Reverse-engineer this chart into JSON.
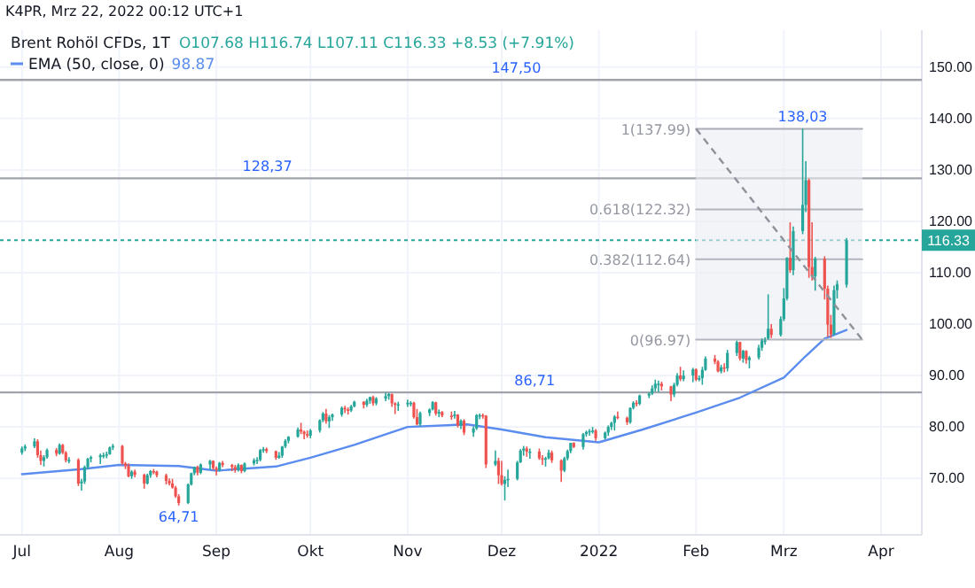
{
  "chart_data": {
    "type": "candlestick",
    "title": "Brent Rohöl CFDs, 1T",
    "annotations": [
      "K4PR, Mrz 22, 2022 00:12 UTC+1",
      "O107.68 H116.74 L107.11 C116.33 +8.53 (+7.91%)",
      "98.87",
      {
        "text": "138,03",
        "x": "2022-03-07",
        "y": 138.03
      },
      {
        "text": "64,71",
        "x": "2021-08-20",
        "y": 64.71
      }
    ],
    "x": [
      "2021-07-01",
      "2021-07-02",
      "2021-07-05",
      "2021-07-06",
      "2021-07-07",
      "2021-07-08",
      "2021-07-09",
      "2021-07-12",
      "2021-07-13",
      "2021-07-14",
      "2021-07-15",
      "2021-07-16",
      "2021-07-19",
      "2021-07-20",
      "2021-07-21",
      "2021-07-22",
      "2021-07-23",
      "2021-07-26",
      "2021-07-27",
      "2021-07-28",
      "2021-07-29",
      "2021-07-30",
      "2021-08-02",
      "2021-08-03",
      "2021-08-04",
      "2021-08-05",
      "2021-08-06",
      "2021-08-09",
      "2021-08-10",
      "2021-08-11",
      "2021-08-12",
      "2021-08-13",
      "2021-08-16",
      "2021-08-17",
      "2021-08-18",
      "2021-08-19",
      "2021-08-20",
      "2021-08-23",
      "2021-08-24",
      "2021-08-25",
      "2021-08-26",
      "2021-08-27",
      "2021-08-30",
      "2021-08-31",
      "2021-09-01",
      "2021-09-02",
      "2021-09-03",
      "2021-09-06",
      "2021-09-07",
      "2021-09-08",
      "2021-09-09",
      "2021-09-10",
      "2021-09-13",
      "2021-09-14",
      "2021-09-15",
      "2021-09-16",
      "2021-09-17",
      "2021-09-20",
      "2021-09-21",
      "2021-09-22",
      "2021-09-23",
      "2021-09-24",
      "2021-09-27",
      "2021-09-28",
      "2021-09-29",
      "2021-09-30",
      "2021-10-01",
      "2021-10-04",
      "2021-10-05",
      "2021-10-06",
      "2021-10-07",
      "2021-10-08",
      "2021-10-11",
      "2021-10-12",
      "2021-10-13",
      "2021-10-14",
      "2021-10-15",
      "2021-10-18",
      "2021-10-19",
      "2021-10-20",
      "2021-10-21",
      "2021-10-22",
      "2021-10-25",
      "2021-10-26",
      "2021-10-27",
      "2021-10-28",
      "2021-10-29",
      "2021-11-01",
      "2021-11-02",
      "2021-11-03",
      "2021-11-04",
      "2021-11-05",
      "2021-11-08",
      "2021-11-09",
      "2021-11-10",
      "2021-11-11",
      "2021-11-12",
      "2021-11-15",
      "2021-11-16",
      "2021-11-17",
      "2021-11-18",
      "2021-11-19",
      "2021-11-22",
      "2021-11-23",
      "2021-11-24",
      "2021-11-25",
      "2021-11-26",
      "2021-11-29",
      "2021-11-30",
      "2021-12-01",
      "2021-12-02",
      "2021-12-03",
      "2021-12-06",
      "2021-12-07",
      "2021-12-08",
      "2021-12-09",
      "2021-12-10",
      "2021-12-13",
      "2021-12-14",
      "2021-12-15",
      "2021-12-16",
      "2021-12-17",
      "2021-12-20",
      "2021-12-21",
      "2021-12-22",
      "2021-12-23",
      "2021-12-24",
      "2021-12-27",
      "2021-12-28",
      "2021-12-29",
      "2021-12-30",
      "2021-12-31",
      "2022-01-03",
      "2022-01-04",
      "2022-01-05",
      "2022-01-06",
      "2022-01-07",
      "2022-01-10",
      "2022-01-11",
      "2022-01-12",
      "2022-01-13",
      "2022-01-14",
      "2022-01-17",
      "2022-01-18",
      "2022-01-19",
      "2022-01-20",
      "2022-01-21",
      "2022-01-24",
      "2022-01-25",
      "2022-01-26",
      "2022-01-27",
      "2022-01-28",
      "2022-01-31",
      "2022-02-01",
      "2022-02-02",
      "2022-02-03",
      "2022-02-04",
      "2022-02-07",
      "2022-02-08",
      "2022-02-09",
      "2022-02-10",
      "2022-02-11",
      "2022-02-14",
      "2022-02-15",
      "2022-02-16",
      "2022-02-17",
      "2022-02-18",
      "2022-02-21",
      "2022-02-22",
      "2022-02-23",
      "2022-02-24",
      "2022-02-25",
      "2022-02-28",
      "2022-03-01",
      "2022-03-02",
      "2022-03-03",
      "2022-03-04",
      "2022-03-07",
      "2022-03-08",
      "2022-03-09",
      "2022-03-10",
      "2022-03-11",
      "2022-03-14",
      "2022-03-15",
      "2022-03-16",
      "2022-03-17",
      "2022-03-18",
      "2022-03-21"
    ],
    "ohlc": [
      [
        75.0,
        76.2,
        74.6,
        75.8
      ],
      [
        75.8,
        76.6,
        75.3,
        76.2
      ],
      [
        76.2,
        77.8,
        75.9,
        77.2
      ],
      [
        77.2,
        77.6,
        74.0,
        74.5
      ],
      [
        74.5,
        75.4,
        72.6,
        73.4
      ],
      [
        73.4,
        74.5,
        72.3,
        74.1
      ],
      [
        74.1,
        75.8,
        73.8,
        75.5
      ],
      [
        75.5,
        75.9,
        74.3,
        74.8
      ],
      [
        74.8,
        76.8,
        74.6,
        76.5
      ],
      [
        76.5,
        76.7,
        74.7,
        75.0
      ],
      [
        75.0,
        75.3,
        73.1,
        73.5
      ],
      [
        73.5,
        74.1,
        72.9,
        73.6
      ],
      [
        73.6,
        73.9,
        68.5,
        69.0
      ],
      [
        69.0,
        69.9,
        67.6,
        69.4
      ],
      [
        69.4,
        72.5,
        68.9,
        72.2
      ],
      [
        72.2,
        74.0,
        71.8,
        73.8
      ],
      [
        73.8,
        74.4,
        73.1,
        74.1
      ],
      [
        74.1,
        74.8,
        72.8,
        74.5
      ],
      [
        74.5,
        75.0,
        73.9,
        74.5
      ],
      [
        74.5,
        75.2,
        73.9,
        74.7
      ],
      [
        74.7,
        76.2,
        74.6,
        76.0
      ],
      [
        76.0,
        76.7,
        75.5,
        76.3
      ],
      [
        76.3,
        76.5,
        72.6,
        72.9
      ],
      [
        72.9,
        73.2,
        71.8,
        72.4
      ],
      [
        72.4,
        72.9,
        70.2,
        70.4
      ],
      [
        70.4,
        71.6,
        69.9,
        71.3
      ],
      [
        71.3,
        71.7,
        70.2,
        70.7
      ],
      [
        70.7,
        70.9,
        68.0,
        69.0
      ],
      [
        69.0,
        70.9,
        68.8,
        70.6
      ],
      [
        70.6,
        71.6,
        70.1,
        71.4
      ],
      [
        71.4,
        71.8,
        70.8,
        71.3
      ],
      [
        71.3,
        71.5,
        70.2,
        70.6
      ],
      [
        70.6,
        70.9,
        68.8,
        69.5
      ],
      [
        69.5,
        70.0,
        68.6,
        69.0
      ],
      [
        69.0,
        69.9,
        68.0,
        68.2
      ],
      [
        68.2,
        68.5,
        66.2,
        66.5
      ],
      [
        66.5,
        66.9,
        64.71,
        65.2
      ],
      [
        65.2,
        69.0,
        65.0,
        68.8
      ],
      [
        68.8,
        71.1,
        68.6,
        71.0
      ],
      [
        71.0,
        72.3,
        70.6,
        72.2
      ],
      [
        72.2,
        72.5,
        70.6,
        71.1
      ],
      [
        71.1,
        72.9,
        70.8,
        72.7
      ],
      [
        72.7,
        73.6,
        71.7,
        73.4
      ],
      [
        73.4,
        73.5,
        71.6,
        72.0
      ],
      [
        72.0,
        72.3,
        70.6,
        71.6
      ],
      [
        71.6,
        73.2,
        71.3,
        73.0
      ],
      [
        73.0,
        73.4,
        72.2,
        72.6
      ],
      [
        72.6,
        72.8,
        71.4,
        72.2
      ],
      [
        72.2,
        72.6,
        71.1,
        71.7
      ],
      [
        71.7,
        72.9,
        71.3,
        72.6
      ],
      [
        72.6,
        72.7,
        71.0,
        71.4
      ],
      [
        71.4,
        73.1,
        71.2,
        72.9
      ],
      [
        72.9,
        73.9,
        72.5,
        73.5
      ],
      [
        73.5,
        74.1,
        72.8,
        73.6
      ],
      [
        73.6,
        75.7,
        73.3,
        75.5
      ],
      [
        75.5,
        76.1,
        75.0,
        75.7
      ],
      [
        75.7,
        76.0,
        74.9,
        75.3
      ],
      [
        75.3,
        75.4,
        73.6,
        74.0
      ],
      [
        74.0,
        75.1,
        73.8,
        74.4
      ],
      [
        74.4,
        76.3,
        74.0,
        76.2
      ],
      [
        76.2,
        77.6,
        75.9,
        77.3
      ],
      [
        77.3,
        78.2,
        76.8,
        78.1
      ],
      [
        78.1,
        79.9,
        77.9,
        79.5
      ],
      [
        79.5,
        80.8,
        78.6,
        79.1
      ],
      [
        79.1,
        79.3,
        77.6,
        78.6
      ],
      [
        78.6,
        79.3,
        77.9,
        78.3
      ],
      [
        78.3,
        79.6,
        77.8,
        79.3
      ],
      [
        79.3,
        81.5,
        78.9,
        81.3
      ],
      [
        81.3,
        82.9,
        80.9,
        82.6
      ],
      [
        82.6,
        83.5,
        80.6,
        81.1
      ],
      [
        81.1,
        82.3,
        79.8,
        81.9
      ],
      [
        81.9,
        82.6,
        81.2,
        82.4
      ],
      [
        82.4,
        84.0,
        82.0,
        83.7
      ],
      [
        83.7,
        84.1,
        82.7,
        83.4
      ],
      [
        83.4,
        83.8,
        82.4,
        83.2
      ],
      [
        83.2,
        84.3,
        82.9,
        84.0
      ],
      [
        84.0,
        85.1,
        83.8,
        84.9
      ],
      [
        84.9,
        85.0,
        83.6,
        84.3
      ],
      [
        84.3,
        85.5,
        83.9,
        85.1
      ],
      [
        85.1,
        85.9,
        84.5,
        85.8
      ],
      [
        85.8,
        86.1,
        84.1,
        84.6
      ],
      [
        84.6,
        85.8,
        84.2,
        85.5
      ],
      [
        85.5,
        86.71,
        85.0,
        86.0
      ],
      [
        86.0,
        86.6,
        85.3,
        86.4
      ],
      [
        86.4,
        86.5,
        83.9,
        84.6
      ],
      [
        84.6,
        84.8,
        82.5,
        84.3
      ],
      [
        84.3,
        84.9,
        83.1,
        84.4
      ],
      [
        84.4,
        85.3,
        83.9,
        84.7
      ],
      [
        84.7,
        85.0,
        84.0,
        84.7
      ],
      [
        84.7,
        84.9,
        81.6,
        81.9
      ],
      [
        81.9,
        83.5,
        80.3,
        80.5
      ],
      [
        80.5,
        83.0,
        80.1,
        82.7
      ],
      [
        82.7,
        83.6,
        82.1,
        83.4
      ],
      [
        83.4,
        85.0,
        83.2,
        84.8
      ],
      [
        84.8,
        84.9,
        82.2,
        82.6
      ],
      [
        82.6,
        83.4,
        81.9,
        82.9
      ],
      [
        82.9,
        83.1,
        81.9,
        82.2
      ],
      [
        82.2,
        83.0,
        81.4,
        82.1
      ],
      [
        82.1,
        83.1,
        81.6,
        82.4
      ],
      [
        82.4,
        82.5,
        79.9,
        80.3
      ],
      [
        80.3,
        81.5,
        79.6,
        81.2
      ],
      [
        81.2,
        81.5,
        78.4,
        78.9
      ],
      [
        78.9,
        80.1,
        78.1,
        79.7
      ],
      [
        79.7,
        82.5,
        79.4,
        82.3
      ],
      [
        82.3,
        82.6,
        81.5,
        82.3
      ],
      [
        82.3,
        82.6,
        81.6,
        82.2
      ],
      [
        82.2,
        82.3,
        72.0,
        72.7
      ],
      [
        72.7,
        75.4,
        72.4,
        73.4
      ],
      [
        73.4,
        74.0,
        68.9,
        70.6
      ],
      [
        70.6,
        73.4,
        68.6,
        68.9
      ],
      [
        68.9,
        70.4,
        65.7,
        69.7
      ],
      [
        69.7,
        71.7,
        68.3,
        69.9
      ],
      [
        69.9,
        73.4,
        69.6,
        73.1
      ],
      [
        73.1,
        75.7,
        73.0,
        75.4
      ],
      [
        75.4,
        76.3,
        74.4,
        75.8
      ],
      [
        75.8,
        76.2,
        74.2,
        75.2
      ],
      [
        75.2,
        75.8,
        73.8,
        75.2
      ],
      [
        75.2,
        75.8,
        73.6,
        73.9
      ],
      [
        73.9,
        74.5,
        72.6,
        73.7
      ],
      [
        73.7,
        74.2,
        72.3,
        73.9
      ],
      [
        73.9,
        75.6,
        73.7,
        75.0
      ],
      [
        75.0,
        75.4,
        73.0,
        73.5
      ],
      [
        73.5,
        73.7,
        69.3,
        71.5
      ],
      [
        71.5,
        74.2,
        71.2,
        73.9
      ],
      [
        73.9,
        75.6,
        73.5,
        75.3
      ],
      [
        75.3,
        76.9,
        74.9,
        76.9
      ],
      [
        76.9,
        77.0,
        75.9,
        76.1
      ],
      [
        76.1,
        78.8,
        75.6,
        78.6
      ],
      [
        78.6,
        79.3,
        78.1,
        79.0
      ],
      [
        79.0,
        79.6,
        78.3,
        79.2
      ],
      [
        79.2,
        80.0,
        78.7,
        79.3
      ],
      [
        79.3,
        79.6,
        77.3,
        77.8
      ],
      [
        77.8,
        79.1,
        77.6,
        78.9
      ],
      [
        78.9,
        80.3,
        78.3,
        80.0
      ],
      [
        80.0,
        81.0,
        79.4,
        80.8
      ],
      [
        80.8,
        82.3,
        79.3,
        82.0
      ],
      [
        82.0,
        83.0,
        81.5,
        81.8
      ],
      [
        81.8,
        82.0,
        80.4,
        80.9
      ],
      [
        80.9,
        83.8,
        80.6,
        83.7
      ],
      [
        83.7,
        85.0,
        83.4,
        84.7
      ],
      [
        84.7,
        85.2,
        84.0,
        84.5
      ],
      [
        84.5,
        86.3,
        84.2,
        86.1
      ],
      [
        86.1,
        86.7,
        85.6,
        86.5
      ],
      [
        86.5,
        88.1,
        86.2,
        87.5
      ],
      [
        87.5,
        89.2,
        86.9,
        88.4
      ],
      [
        88.4,
        89.0,
        86.8,
        88.4
      ],
      [
        88.4,
        88.8,
        87.1,
        87.9
      ],
      [
        87.9,
        88.0,
        85.0,
        86.3
      ],
      [
        86.3,
        88.6,
        85.8,
        88.2
      ],
      [
        88.2,
        90.5,
        87.9,
        90.0
      ],
      [
        90.0,
        91.7,
        88.9,
        89.3
      ],
      [
        89.3,
        91.0,
        88.9,
        90.0
      ],
      [
        90.0,
        91.5,
        88.7,
        91.2
      ],
      [
        91.2,
        91.4,
        88.9,
        89.2
      ],
      [
        89.2,
        90.0,
        88.9,
        89.5
      ],
      [
        89.5,
        91.7,
        88.2,
        91.1
      ],
      [
        91.1,
        93.7,
        90.9,
        93.3
      ],
      [
        93.3,
        94.0,
        92.2,
        92.7
      ],
      [
        92.7,
        93.0,
        90.6,
        90.8
      ],
      [
        90.8,
        92.1,
        90.4,
        91.6
      ],
      [
        91.6,
        92.4,
        90.6,
        91.4
      ],
      [
        91.4,
        95.0,
        90.8,
        94.4
      ],
      [
        94.4,
        96.8,
        93.8,
        96.5
      ],
      [
        96.5,
        96.6,
        92.9,
        93.3
      ],
      [
        93.3,
        95.0,
        92.5,
        94.8
      ],
      [
        94.8,
        94.9,
        92.3,
        93.0
      ],
      [
        93.0,
        93.8,
        91.4,
        93.5
      ],
      [
        93.5,
        96.0,
        93.1,
        95.4
      ],
      [
        95.4,
        97.2,
        94.8,
        96.8
      ],
      [
        96.8,
        97.4,
        96.0,
        96.8
      ],
      [
        97.2,
        105.8,
        96.97,
        99.1
      ],
      [
        99.1,
        100.0,
        97.3,
        97.9
      ],
      [
        97.9,
        101.5,
        97.6,
        101.0
      ],
      [
        101.0,
        107.0,
        100.6,
        105.0
      ],
      [
        105.0,
        113.0,
        104.6,
        112.9
      ],
      [
        112.9,
        119.8,
        110.0,
        110.5
      ],
      [
        110.5,
        119.0,
        109.5,
        118.1
      ],
      [
        118.1,
        138.03,
        117.5,
        123.2
      ],
      [
        123.2,
        131.7,
        121.8,
        128.0
      ],
      [
        128.0,
        128.3,
        109.0,
        111.1
      ],
      [
        111.1,
        119.8,
        108.5,
        109.3
      ],
      [
        109.3,
        113.1,
        106.5,
        112.7
      ],
      [
        112.7,
        113.2,
        104.8,
        106.9
      ],
      [
        106.9,
        107.5,
        97.5,
        99.9
      ],
      [
        99.9,
        101.8,
        97.3,
        98.0
      ],
      [
        98.0,
        107.5,
        97.8,
        106.6
      ],
      [
        106.6,
        108.5,
        105.0,
        107.8
      ],
      [
        107.68,
        116.74,
        107.11,
        116.33
      ]
    ],
    "series": [
      {
        "type": "line",
        "name": "EMA (50, close, 0)",
        "color": "#5b8def",
        "x": [
          "2021-07-01",
          "2021-07-20",
          "2021-08-01",
          "2021-08-20",
          "2021-09-01",
          "2021-09-20",
          "2021-10-01",
          "2021-10-15",
          "2021-11-01",
          "2021-11-20",
          "2021-12-01",
          "2021-12-15",
          "2022-01-01",
          "2022-01-15",
          "2022-02-01",
          "2022-02-15",
          "2022-03-01",
          "2022-03-08",
          "2022-03-14",
          "2022-03-21"
        ],
        "values": [
          70.8,
          71.8,
          72.6,
          72.4,
          71.5,
          72.3,
          74.0,
          76.5,
          80.0,
          80.5,
          79.5,
          78.0,
          77.0,
          79.5,
          82.8,
          85.7,
          89.6,
          93.8,
          97.2,
          98.87
        ]
      },
      {
        "type": "line",
        "name": "1(137.99)",
        "color": "#a9acb5",
        "x": [
          "2022-02-01",
          "2022-03-26"
        ],
        "values": [
          137.99,
          137.99
        ]
      },
      {
        "type": "line",
        "name": "0.618(122.32)",
        "color": "#b2b5be",
        "x": [
          "2022-02-01",
          "2022-03-26"
        ],
        "values": [
          122.32,
          122.32
        ]
      },
      {
        "type": "line",
        "name": "0.382(112.64)",
        "color": "#b2b5be",
        "x": [
          "2022-02-01",
          "2022-03-26"
        ],
        "values": [
          112.64,
          112.64
        ]
      },
      {
        "type": "line",
        "name": "0(96.97)",
        "color": "#b2b5be",
        "x": [
          "2022-02-01",
          "2022-03-26"
        ],
        "values": [
          96.97,
          96.97
        ]
      }
    ],
    "bands": [
      {
        "axis": "y",
        "from": 96.97,
        "to": 137.99,
        "color": "#ebecf2"
      }
    ],
    "ref_lines": [
      {
        "axis": "y",
        "value": 147.5,
        "label": "147,50",
        "color": "#a0a3ab"
      },
      {
        "axis": "y",
        "value": 128.37,
        "label": "128,37",
        "color": "#a0a3ab"
      },
      {
        "axis": "y",
        "value": 86.71,
        "label": "86,71",
        "color": "#a0a3ab"
      },
      {
        "axis": "y",
        "value": 116.33,
        "label": "116.33",
        "color": "#26a69a",
        "line_style": "dashed"
      }
    ],
    "xlim": [
      "2021-06-24",
      "2022-04-14"
    ],
    "xticks": [
      {
        "value": "2021-07-01",
        "label": "Jul"
      },
      {
        "value": "2021-08-01",
        "label": "Aug"
      },
      {
        "value": "2021-09-01",
        "label": "Sep"
      },
      {
        "value": "2021-10-01",
        "label": "Okt"
      },
      {
        "value": "2021-11-01",
        "label": "Nov"
      },
      {
        "value": "2021-12-01",
        "label": "Dez"
      },
      {
        "value": "2022-01-01",
        "label": "2022"
      },
      {
        "value": "2022-02-01",
        "label": "Feb"
      },
      {
        "value": "2022-03-01",
        "label": "Mrz"
      },
      {
        "value": "2022-04-01",
        "label": "Apr"
      }
    ],
    "ylim": [
      59,
      157.2
    ],
    "yticks": [
      {
        "value": 70,
        "label": "70.00"
      },
      {
        "value": 80,
        "label": "80.00"
      },
      {
        "value": 90,
        "label": "90.00"
      },
      {
        "value": 100,
        "label": "100.00"
      },
      {
        "value": 110,
        "label": "110.00"
      },
      {
        "value": 120,
        "label": "120.00"
      },
      {
        "value": 130,
        "label": "130.00"
      },
      {
        "value": 140,
        "label": "140.00"
      },
      {
        "value": 150,
        "label": "150.00"
      }
    ],
    "grid": true,
    "legend": "top left"
  }
}
